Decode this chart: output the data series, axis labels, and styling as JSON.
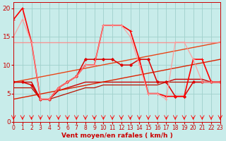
{
  "xlabel": "Vent moyen/en rafales ( km/h )",
  "xlim": [
    0,
    23
  ],
  "ylim": [
    0,
    21
  ],
  "yticks": [
    0,
    5,
    10,
    15,
    20
  ],
  "xticks": [
    0,
    1,
    2,
    3,
    4,
    5,
    6,
    7,
    8,
    9,
    10,
    11,
    12,
    13,
    14,
    15,
    16,
    17,
    18,
    19,
    20,
    21,
    22,
    23
  ],
  "bg_color": "#c8ecea",
  "grid_color": "#a0d0cc",
  "series": [
    {
      "x": [
        0,
        1,
        2,
        3,
        4,
        5,
        6,
        7,
        8,
        9,
        10,
        11,
        12,
        13,
        14,
        15,
        16,
        17,
        18,
        19,
        20,
        21,
        22,
        23
      ],
      "y": [
        7,
        7,
        7,
        4,
        4,
        5.5,
        6,
        6.5,
        7,
        7,
        7,
        7,
        7,
        7,
        7,
        7,
        7,
        7,
        7.5,
        7.5,
        7.5,
        7.5,
        7,
        7
      ],
      "color": "#cc0000",
      "linewidth": 1.0,
      "marker": null,
      "markersize": 0,
      "alpha": 1.0
    },
    {
      "x": [
        0,
        1,
        2,
        3,
        4,
        5,
        6,
        7,
        8,
        9,
        10,
        11,
        12,
        13,
        14,
        15,
        16,
        17,
        18,
        19,
        20,
        21,
        22,
        23
      ],
      "y": [
        6,
        6,
        6,
        4,
        4,
        4.5,
        5,
        5.5,
        6,
        6,
        6.5,
        6.5,
        6.5,
        6.5,
        6.5,
        6.5,
        6.5,
        7,
        7,
        7,
        7,
        7,
        7,
        7
      ],
      "color": "#bb1100",
      "linewidth": 0.9,
      "marker": null,
      "markersize": 0,
      "alpha": 1.0
    },
    {
      "x": [
        0,
        23
      ],
      "y": [
        4,
        11
      ],
      "color": "#dd2200",
      "linewidth": 1.0,
      "marker": null,
      "markersize": 0,
      "alpha": 1.0
    },
    {
      "x": [
        0,
        23
      ],
      "y": [
        7,
        14
      ],
      "color": "#ee3300",
      "linewidth": 1.0,
      "marker": null,
      "markersize": 0,
      "alpha": 0.9
    },
    {
      "x": [
        0,
        23
      ],
      "y": [
        14,
        14
      ],
      "color": "#ff8888",
      "linewidth": 1.0,
      "marker": null,
      "markersize": 0,
      "alpha": 0.85
    },
    {
      "x": [
        0,
        1,
        2,
        3,
        4,
        5,
        6,
        7,
        8,
        9,
        10,
        11,
        12,
        13,
        14,
        15,
        16,
        17,
        18,
        19,
        20,
        21,
        22,
        23
      ],
      "y": [
        7,
        7,
        6.5,
        4,
        4,
        6,
        7,
        8,
        11,
        11,
        11,
        11,
        10,
        10,
        11,
        11,
        7,
        7,
        4.5,
        4.5,
        7,
        7,
        7,
        7
      ],
      "color": "#dd0000",
      "linewidth": 1.1,
      "marker": "D",
      "markersize": 2.0,
      "alpha": 1.0
    },
    {
      "x": [
        0,
        1,
        2,
        3,
        4,
        5,
        6,
        7,
        8,
        9,
        10,
        11,
        12,
        13,
        14,
        15,
        16,
        17,
        18,
        19,
        20,
        21,
        22,
        23
      ],
      "y": [
        18,
        20,
        14,
        4,
        4,
        6,
        7,
        8,
        10,
        10,
        17,
        17,
        17,
        16,
        11,
        5,
        5,
        4.5,
        4.5,
        4.5,
        11,
        11,
        7,
        7
      ],
      "color": "#ff0000",
      "linewidth": 1.2,
      "marker": "+",
      "markersize": 3.5,
      "alpha": 1.0
    },
    {
      "x": [
        0,
        1,
        2,
        3,
        4,
        5,
        6,
        7,
        8,
        9,
        10,
        11,
        12,
        13,
        14,
        15,
        16,
        17,
        18,
        19,
        20,
        21,
        22,
        23
      ],
      "y": [
        15,
        18,
        14,
        4,
        4,
        6,
        7,
        8,
        10,
        10,
        17,
        17,
        17,
        15,
        10,
        5,
        5,
        4,
        14,
        14,
        11,
        7,
        7,
        7
      ],
      "color": "#ff9999",
      "linewidth": 1.0,
      "marker": "+",
      "markersize": 3.0,
      "alpha": 0.8
    }
  ],
  "wind_ticks_x": [
    0,
    1,
    2,
    3,
    4,
    5,
    6,
    7,
    8,
    9,
    10,
    11,
    12,
    13,
    14,
    15,
    16,
    17,
    18,
    19,
    20,
    21,
    22,
    23
  ],
  "wind_tick_color": "#ff0000"
}
